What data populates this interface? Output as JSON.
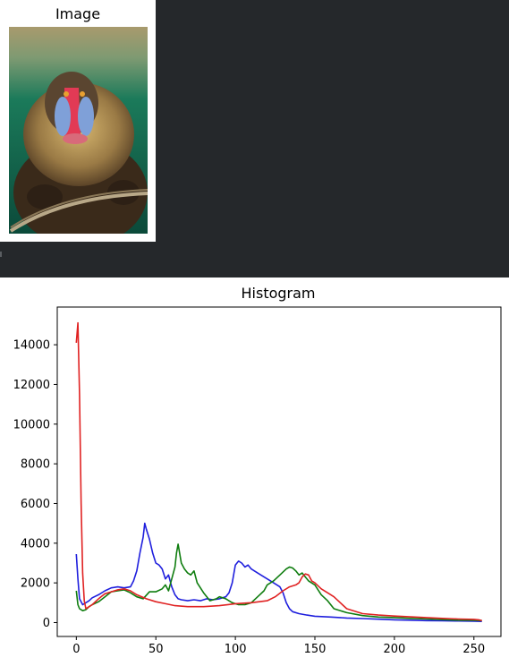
{
  "image_panel": {
    "title": "Image",
    "picture": "mandrill-photo"
  },
  "chart_data": {
    "type": "line",
    "title": "Histogram",
    "xlabel": "",
    "ylabel": "",
    "xlim": [
      -12,
      267
    ],
    "ylim": [
      -700,
      15900
    ],
    "xticks": [
      0,
      50,
      100,
      150,
      200,
      250
    ],
    "yticks": [
      0,
      2000,
      4000,
      6000,
      8000,
      10000,
      12000,
      14000
    ],
    "grid": false,
    "series": [
      {
        "color": "#1f1fdd",
        "x": [
          0,
          1,
          2,
          4,
          6,
          8,
          10,
          14,
          18,
          22,
          26,
          30,
          34,
          36,
          38,
          40,
          42,
          43,
          44,
          46,
          48,
          50,
          52,
          54,
          56,
          58,
          60,
          62,
          64,
          66,
          70,
          74,
          78,
          82,
          86,
          90,
          94,
          96,
          98,
          100,
          102,
          104,
          106,
          108,
          110,
          112,
          116,
          120,
          124,
          128,
          130,
          132,
          134,
          136,
          140,
          145,
          150,
          160,
          170,
          180,
          190,
          200,
          210,
          220,
          230,
          240,
          250,
          255
        ],
        "y": [
          3450,
          2200,
          1200,
          900,
          1000,
          1100,
          1250,
          1400,
          1600,
          1750,
          1800,
          1750,
          1800,
          2100,
          2600,
          3500,
          4300,
          5000,
          4700,
          4200,
          3500,
          3000,
          2900,
          2700,
          2200,
          2400,
          1800,
          1400,
          1200,
          1150,
          1100,
          1150,
          1100,
          1200,
          1150,
          1200,
          1300,
          1500,
          2000,
          2900,
          3100,
          3000,
          2800,
          2900,
          2700,
          2600,
          2400,
          2200,
          2000,
          1800,
          1500,
          1000,
          700,
          550,
          450,
          380,
          320,
          280,
          230,
          200,
          170,
          140,
          120,
          100,
          90,
          80,
          70,
          60
        ]
      },
      {
        "color": "#0f7d0f",
        "x": [
          0,
          1,
          2,
          4,
          6,
          8,
          10,
          14,
          18,
          22,
          26,
          30,
          34,
          38,
          42,
          46,
          50,
          54,
          56,
          58,
          60,
          62,
          63,
          64,
          66,
          68,
          70,
          72,
          74,
          76,
          80,
          84,
          88,
          90,
          94,
          98,
          102,
          106,
          110,
          114,
          118,
          120,
          124,
          128,
          132,
          134,
          136,
          138,
          140,
          142,
          144,
          146,
          150,
          154,
          158,
          162,
          170,
          180,
          190,
          200,
          210,
          220,
          230,
          240,
          250,
          255
        ],
        "y": [
          1600,
          900,
          700,
          600,
          650,
          800,
          900,
          1050,
          1300,
          1550,
          1600,
          1650,
          1500,
          1300,
          1200,
          1550,
          1550,
          1700,
          1900,
          1600,
          2200,
          2800,
          3500,
          3950,
          3000,
          2700,
          2500,
          2400,
          2600,
          2000,
          1500,
          1100,
          1200,
          1300,
          1200,
          1000,
          900,
          900,
          1000,
          1300,
          1600,
          1900,
          2100,
          2400,
          2700,
          2800,
          2750,
          2600,
          2400,
          2500,
          2300,
          2100,
          1900,
          1400,
          1100,
          700,
          500,
          350,
          280,
          250,
          210,
          180,
          150,
          120,
          110,
          100
        ]
      },
      {
        "color": "#e02222",
        "x": [
          0,
          1,
          2,
          3,
          4,
          5,
          6,
          8,
          10,
          14,
          18,
          22,
          26,
          30,
          34,
          38,
          44,
          50,
          56,
          62,
          70,
          80,
          90,
          100,
          110,
          120,
          125,
          130,
          134,
          138,
          140,
          142,
          144,
          146,
          148,
          150,
          154,
          158,
          162,
          166,
          170,
          180,
          190,
          200,
          210,
          220,
          230,
          240,
          250,
          253,
          255
        ],
        "y": [
          14100,
          15100,
          11500,
          6000,
          2500,
          1100,
          700,
          800,
          900,
          1200,
          1450,
          1550,
          1650,
          1700,
          1600,
          1400,
          1200,
          1050,
          950,
          850,
          800,
          800,
          850,
          950,
          1000,
          1100,
          1300,
          1600,
          1800,
          1900,
          2000,
          2300,
          2450,
          2400,
          2100,
          2000,
          1700,
          1500,
          1300,
          1000,
          700,
          450,
          380,
          330,
          290,
          250,
          210,
          180,
          160,
          140,
          100
        ]
      }
    ]
  }
}
